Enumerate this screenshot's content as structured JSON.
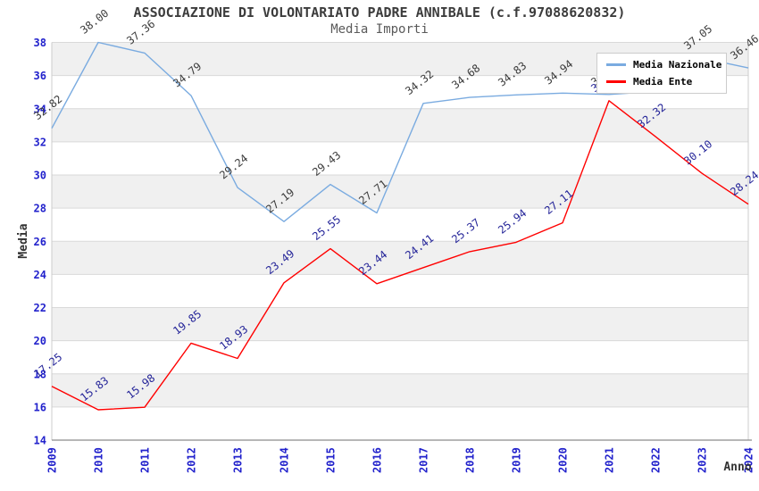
{
  "page": {
    "background": "#ffffff"
  },
  "chart_data": {
    "type": "line",
    "title": "ASSOCIAZIONE DI VOLONTARIATO PADRE ANNIBALE (c.f.97088620832)",
    "subtitle": "Media Importi",
    "xlabel": "Anno",
    "ylabel": "Media",
    "x": [
      2009,
      2010,
      2011,
      2012,
      2013,
      2014,
      2015,
      2016,
      2017,
      2018,
      2019,
      2020,
      2021,
      2022,
      2023,
      2024
    ],
    "ylim": [
      14,
      38
    ],
    "ytick_step": 2,
    "yticks": [
      38,
      36,
      34,
      32,
      30,
      28,
      26,
      24,
      22,
      20,
      18,
      16,
      14
    ],
    "grid": true,
    "band_fill": "alternating-gray",
    "legend_position": "top-right",
    "value_label_format": "0.00",
    "series": [
      {
        "name": "Media Nazionale",
        "color": "#7aabe0",
        "label_color": "#3c3c3c",
        "values": [
          32.82,
          38.0,
          37.36,
          34.79,
          29.24,
          27.19,
          29.43,
          27.71,
          34.32,
          34.68,
          34.83,
          34.94,
          34.86,
          35.04,
          37.05,
          36.46
        ],
        "labels_occluded_by_legend": [
          2021,
          2022
        ]
      },
      {
        "name": "Media Ente",
        "color": "#ff0000",
        "label_color": "#252599",
        "values": [
          17.25,
          15.83,
          15.98,
          19.85,
          18.93,
          23.49,
          25.55,
          23.44,
          24.41,
          25.37,
          25.94,
          27.11,
          34.48,
          32.32,
          30.1,
          28.24
        ],
        "labels_occluded_by_legend": [
          2021
        ]
      }
    ]
  },
  "legend": {
    "items": [
      {
        "label": "Media Nazionale",
        "color": "#7aabe0"
      },
      {
        "label": "Media Ente",
        "color": "#ff0000"
      }
    ]
  },
  "colors": {
    "band_gray": "#f0f0f0",
    "band_white": "#ffffff",
    "gridline": "#d9d9d9",
    "plot_border": "#cccccc",
    "bottom_axis": "#8c8c8c",
    "axis_tick_text": "#2222cc",
    "axis_title_text": "#333333",
    "title_text": "#3c3c3c",
    "subtitle_text": "#5a5a5a",
    "legend_border": "#cccccc",
    "legend_text": "#000000"
  }
}
